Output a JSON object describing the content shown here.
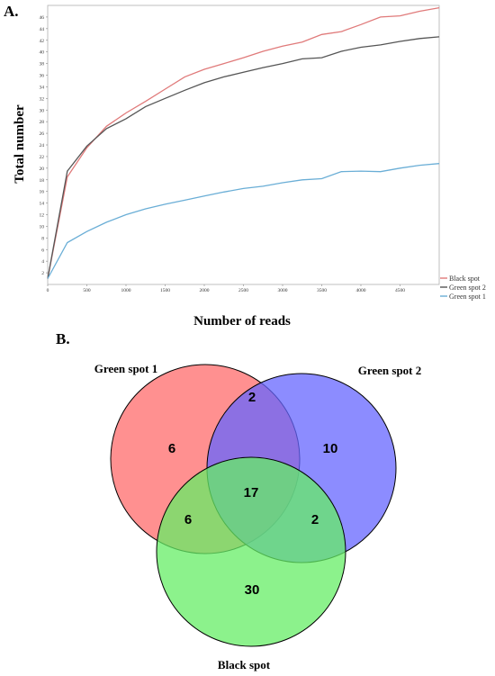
{
  "panels": {
    "a_label": "A.",
    "b_label": "B."
  },
  "chart_data": [
    {
      "type": "line",
      "title": "",
      "xlabel": "Number of reads",
      "ylabel": "Total number",
      "xlim": [
        0,
        5000
      ],
      "ylim": [
        0,
        48
      ],
      "xticks": [
        0,
        500,
        1000,
        1500,
        2000,
        2500,
        3000,
        3500,
        4000,
        4500
      ],
      "yticks": [
        2,
        4,
        6,
        8,
        10,
        12,
        14,
        16,
        18,
        20,
        22,
        24,
        26,
        28,
        30,
        32,
        34,
        36,
        38,
        40,
        42,
        44,
        46
      ],
      "grid": false,
      "legend_position": "bottom-right",
      "series": [
        {
          "name": "Black spot",
          "color": "#e07a7a",
          "points": [
            [
              0,
              1
            ],
            [
              250,
              18.5
            ],
            [
              500,
              23.5
            ],
            [
              750,
              27.2
            ],
            [
              1000,
              29.5
            ],
            [
              1250,
              31.5
            ],
            [
              1500,
              33.6
            ],
            [
              1750,
              35.7
            ],
            [
              2000,
              37
            ],
            [
              2250,
              38
            ],
            [
              2500,
              39
            ],
            [
              2750,
              40.1
            ],
            [
              3000,
              41
            ],
            [
              3250,
              41.7
            ],
            [
              3500,
              43
            ],
            [
              3750,
              43.5
            ],
            [
              4000,
              44.7
            ],
            [
              4250,
              46
            ],
            [
              4500,
              46.2
            ],
            [
              4750,
              47
            ],
            [
              5000,
              47.6
            ]
          ]
        },
        {
          "name": "Green spot 2",
          "color": "#555555",
          "points": [
            [
              0,
              1
            ],
            [
              250,
              19.5
            ],
            [
              500,
              23.8
            ],
            [
              750,
              26.8
            ],
            [
              1000,
              28.5
            ],
            [
              1250,
              30.6
            ],
            [
              1500,
              32
            ],
            [
              1750,
              33.4
            ],
            [
              2000,
              34.7
            ],
            [
              2250,
              35.7
            ],
            [
              2500,
              36.5
            ],
            [
              2750,
              37.3
            ],
            [
              3000,
              38
            ],
            [
              3250,
              38.8
            ],
            [
              3500,
              39
            ],
            [
              3750,
              40.1
            ],
            [
              4000,
              40.8
            ],
            [
              4250,
              41.2
            ],
            [
              4500,
              41.8
            ],
            [
              4750,
              42.3
            ],
            [
              5000,
              42.6
            ]
          ]
        },
        {
          "name": "Green spot 1",
          "color": "#6aaed6",
          "points": [
            [
              0,
              1
            ],
            [
              250,
              7.2
            ],
            [
              500,
              9.1
            ],
            [
              750,
              10.7
            ],
            [
              1000,
              12
            ],
            [
              1250,
              13
            ],
            [
              1500,
              13.8
            ],
            [
              1750,
              14.5
            ],
            [
              2000,
              15.2
            ],
            [
              2250,
              15.9
            ],
            [
              2500,
              16.5
            ],
            [
              2750,
              16.9
            ],
            [
              3000,
              17.5
            ],
            [
              3250,
              18
            ],
            [
              3500,
              18.2
            ],
            [
              3750,
              19.4
            ],
            [
              4000,
              19.5
            ],
            [
              4250,
              19.4
            ],
            [
              4500,
              20
            ],
            [
              4750,
              20.5
            ],
            [
              5000,
              20.8
            ]
          ]
        }
      ]
    },
    {
      "type": "venn",
      "sets": [
        {
          "label": "Green spot 1",
          "color": "#ff6b6b"
        },
        {
          "label": "Green spot 2",
          "color": "#6666ff"
        },
        {
          "label": "Black spot",
          "color": "#66ee66"
        }
      ],
      "regions": {
        "only_green_spot_1": "6",
        "only_green_spot_2": "10",
        "only_black_spot": "30",
        "green_spot_1_and_green_spot_2": "2",
        "green_spot_1_and_black_spot": "6",
        "green_spot_2_and_black_spot": "2",
        "all_three": "17"
      }
    }
  ]
}
